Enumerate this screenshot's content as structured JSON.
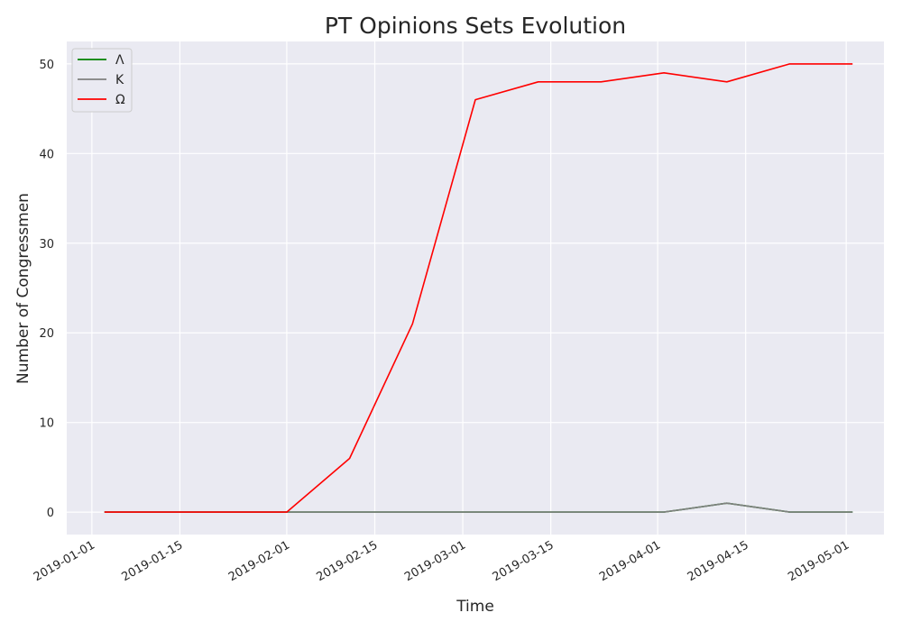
{
  "chart_data": {
    "type": "line",
    "title": "PT Opinions Sets Evolution",
    "xlabel": "Time",
    "ylabel": "Number of Congressmen",
    "x": [
      "2019-01-03",
      "2019-01-13",
      "2019-01-23",
      "2019-02-01",
      "2019-02-11",
      "2019-02-21",
      "2019-03-03",
      "2019-03-13",
      "2019-03-23",
      "2019-04-02",
      "2019-04-12",
      "2019-04-22",
      "2019-05-02"
    ],
    "series": [
      {
        "name": "Λ",
        "color": "#008000",
        "values": [
          0,
          0,
          0,
          0,
          0,
          0,
          0,
          0,
          0,
          0,
          1,
          0,
          0
        ]
      },
      {
        "name": "K",
        "color": "#808080",
        "values": [
          0,
          0,
          0,
          0,
          0,
          0,
          0,
          0,
          0,
          0,
          1,
          0,
          0
        ]
      },
      {
        "name": "Ω",
        "color": "#ff0000",
        "values": [
          0,
          0,
          0,
          0,
          6,
          21,
          46,
          48,
          48,
          49,
          48,
          50,
          50
        ]
      }
    ],
    "xlim": [
      "2018-12-28",
      "2019-05-07"
    ],
    "ylim": [
      -2.5,
      52.5
    ],
    "xticks": [
      "2019-01-01",
      "2019-01-15",
      "2019-02-01",
      "2019-02-15",
      "2019-03-01",
      "2019-03-15",
      "2019-04-01",
      "2019-04-15",
      "2019-05-01"
    ],
    "yticks": [
      0,
      10,
      20,
      30,
      40,
      50
    ],
    "grid": true,
    "legend_position": "top-left",
    "background": "#eaeaf2",
    "grid_color": "#ffffff"
  }
}
